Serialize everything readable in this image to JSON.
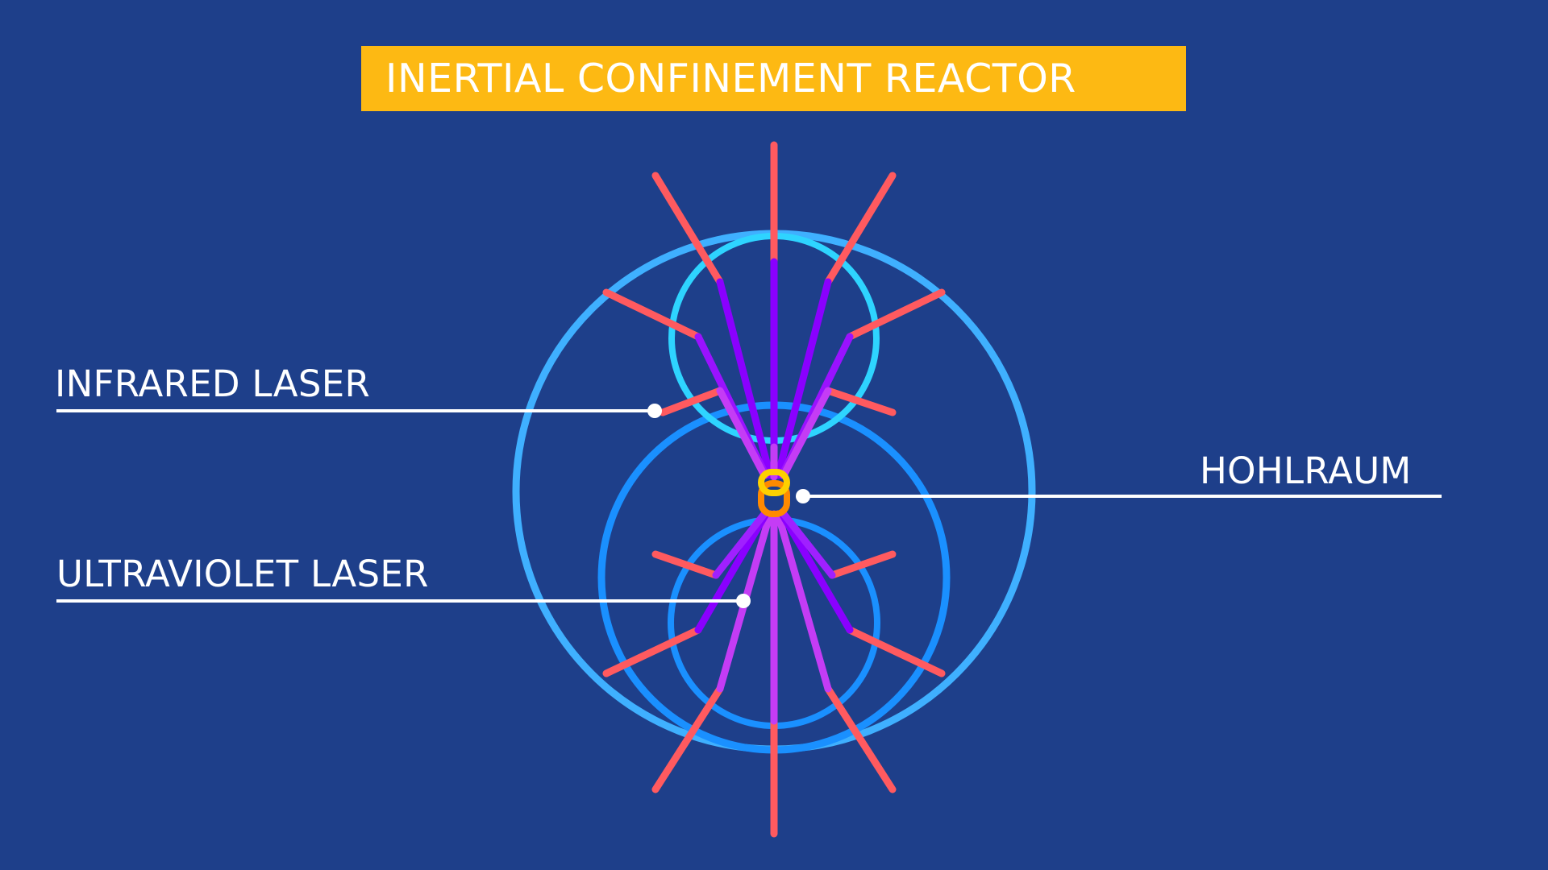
{
  "title": "INERTIAL CONFINEMENT REACTOR",
  "labels": {
    "infrared": "INFRARED LASER",
    "ultraviolet": "ULTRAVIOLET LASER",
    "hohlraum": "HOHLRAUM"
  },
  "colors": {
    "background": "#1e3f8a",
    "title_banner": "#fdb913",
    "infrared_beam": "#ff5a5f",
    "ultraviolet_beam_dark": "#8a00ff",
    "ultraviolet_beam_light": "#c43cf5",
    "outer_chamber": "#3fb0ff",
    "lens_ring_top": "#2ed4ff",
    "lens_ring_bottom": "#1a90ff",
    "hohlraum_top": "#fdd000",
    "hohlraum_bottom": "#ff8a00",
    "callout_line": "#ffffff"
  }
}
